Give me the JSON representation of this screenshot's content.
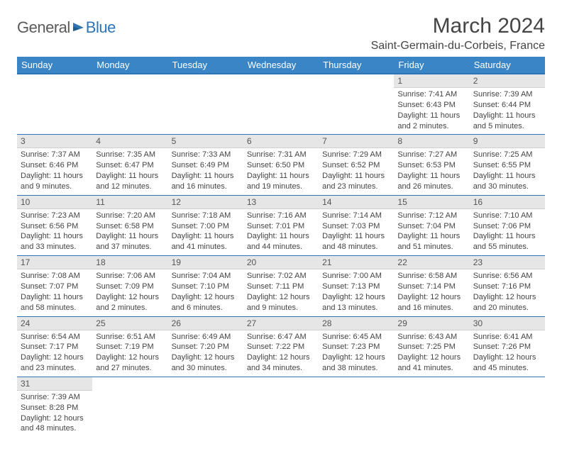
{
  "brand": {
    "part1": "General",
    "part2": "Blue"
  },
  "title": "March 2024",
  "location": "Saint-Germain-du-Corbeis, France",
  "colors": {
    "header_bg": "#3a85c6",
    "header_border": "#2e75b6",
    "daynum_bg": "#e6e6e6",
    "brand_blue": "#2e75b6",
    "brand_gray": "#5a5a5a"
  },
  "weekdays": [
    "Sunday",
    "Monday",
    "Tuesday",
    "Wednesday",
    "Thursday",
    "Friday",
    "Saturday"
  ],
  "weeks": [
    [
      null,
      null,
      null,
      null,
      null,
      {
        "n": "1",
        "sunrise": "7:41 AM",
        "sunset": "6:43 PM",
        "daylight": "11 hours and 2 minutes."
      },
      {
        "n": "2",
        "sunrise": "7:39 AM",
        "sunset": "6:44 PM",
        "daylight": "11 hours and 5 minutes."
      }
    ],
    [
      {
        "n": "3",
        "sunrise": "7:37 AM",
        "sunset": "6:46 PM",
        "daylight": "11 hours and 9 minutes."
      },
      {
        "n": "4",
        "sunrise": "7:35 AM",
        "sunset": "6:47 PM",
        "daylight": "11 hours and 12 minutes."
      },
      {
        "n": "5",
        "sunrise": "7:33 AM",
        "sunset": "6:49 PM",
        "daylight": "11 hours and 16 minutes."
      },
      {
        "n": "6",
        "sunrise": "7:31 AM",
        "sunset": "6:50 PM",
        "daylight": "11 hours and 19 minutes."
      },
      {
        "n": "7",
        "sunrise": "7:29 AM",
        "sunset": "6:52 PM",
        "daylight": "11 hours and 23 minutes."
      },
      {
        "n": "8",
        "sunrise": "7:27 AM",
        "sunset": "6:53 PM",
        "daylight": "11 hours and 26 minutes."
      },
      {
        "n": "9",
        "sunrise": "7:25 AM",
        "sunset": "6:55 PM",
        "daylight": "11 hours and 30 minutes."
      }
    ],
    [
      {
        "n": "10",
        "sunrise": "7:23 AM",
        "sunset": "6:56 PM",
        "daylight": "11 hours and 33 minutes."
      },
      {
        "n": "11",
        "sunrise": "7:20 AM",
        "sunset": "6:58 PM",
        "daylight": "11 hours and 37 minutes."
      },
      {
        "n": "12",
        "sunrise": "7:18 AM",
        "sunset": "7:00 PM",
        "daylight": "11 hours and 41 minutes."
      },
      {
        "n": "13",
        "sunrise": "7:16 AM",
        "sunset": "7:01 PM",
        "daylight": "11 hours and 44 minutes."
      },
      {
        "n": "14",
        "sunrise": "7:14 AM",
        "sunset": "7:03 PM",
        "daylight": "11 hours and 48 minutes."
      },
      {
        "n": "15",
        "sunrise": "7:12 AM",
        "sunset": "7:04 PM",
        "daylight": "11 hours and 51 minutes."
      },
      {
        "n": "16",
        "sunrise": "7:10 AM",
        "sunset": "7:06 PM",
        "daylight": "11 hours and 55 minutes."
      }
    ],
    [
      {
        "n": "17",
        "sunrise": "7:08 AM",
        "sunset": "7:07 PM",
        "daylight": "11 hours and 58 minutes."
      },
      {
        "n": "18",
        "sunrise": "7:06 AM",
        "sunset": "7:09 PM",
        "daylight": "12 hours and 2 minutes."
      },
      {
        "n": "19",
        "sunrise": "7:04 AM",
        "sunset": "7:10 PM",
        "daylight": "12 hours and 6 minutes."
      },
      {
        "n": "20",
        "sunrise": "7:02 AM",
        "sunset": "7:11 PM",
        "daylight": "12 hours and 9 minutes."
      },
      {
        "n": "21",
        "sunrise": "7:00 AM",
        "sunset": "7:13 PM",
        "daylight": "12 hours and 13 minutes."
      },
      {
        "n": "22",
        "sunrise": "6:58 AM",
        "sunset": "7:14 PM",
        "daylight": "12 hours and 16 minutes."
      },
      {
        "n": "23",
        "sunrise": "6:56 AM",
        "sunset": "7:16 PM",
        "daylight": "12 hours and 20 minutes."
      }
    ],
    [
      {
        "n": "24",
        "sunrise": "6:54 AM",
        "sunset": "7:17 PM",
        "daylight": "12 hours and 23 minutes."
      },
      {
        "n": "25",
        "sunrise": "6:51 AM",
        "sunset": "7:19 PM",
        "daylight": "12 hours and 27 minutes."
      },
      {
        "n": "26",
        "sunrise": "6:49 AM",
        "sunset": "7:20 PM",
        "daylight": "12 hours and 30 minutes."
      },
      {
        "n": "27",
        "sunrise": "6:47 AM",
        "sunset": "7:22 PM",
        "daylight": "12 hours and 34 minutes."
      },
      {
        "n": "28",
        "sunrise": "6:45 AM",
        "sunset": "7:23 PM",
        "daylight": "12 hours and 38 minutes."
      },
      {
        "n": "29",
        "sunrise": "6:43 AM",
        "sunset": "7:25 PM",
        "daylight": "12 hours and 41 minutes."
      },
      {
        "n": "30",
        "sunrise": "6:41 AM",
        "sunset": "7:26 PM",
        "daylight": "12 hours and 45 minutes."
      }
    ],
    [
      {
        "n": "31",
        "sunrise": "7:39 AM",
        "sunset": "8:28 PM",
        "daylight": "12 hours and 48 minutes."
      },
      null,
      null,
      null,
      null,
      null,
      null
    ]
  ],
  "labels": {
    "sunrise": "Sunrise: ",
    "sunset": "Sunset: ",
    "daylight": "Daylight: "
  }
}
